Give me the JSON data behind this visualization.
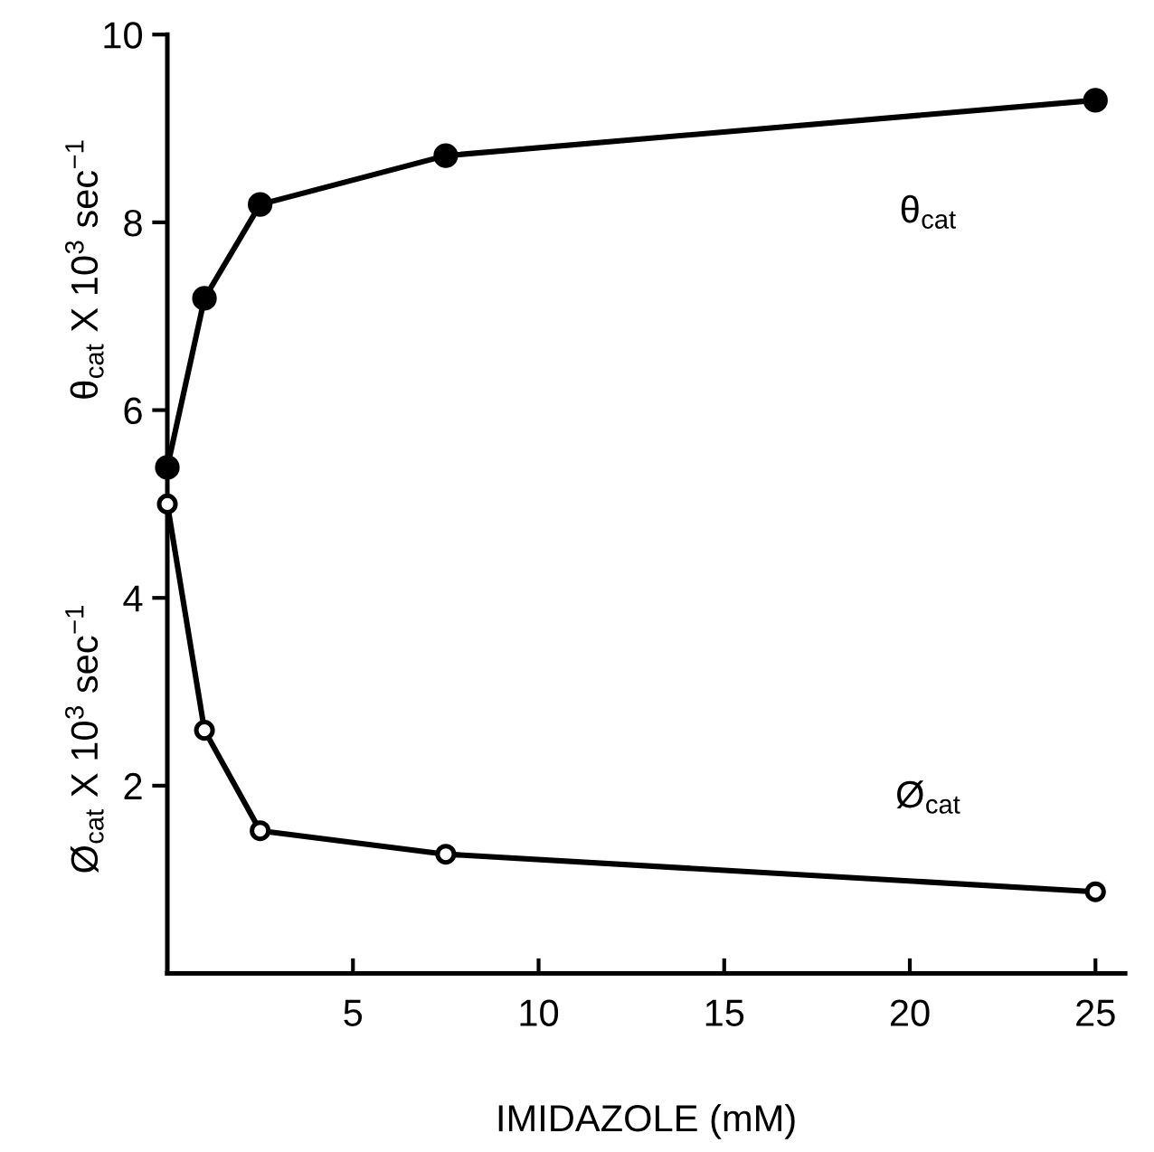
{
  "chart_data": {
    "type": "line",
    "xlabel": "IMIDAZOLE (mM)",
    "ylabel": [
      "θ$_{cat}$ X 10$^{3}$ sec$^{−1}$",
      "Ø$_{cat}$ X 10$^{3}$ sec$^{−1}$"
    ],
    "x": [
      0,
      1,
      2.5,
      7.5,
      25
    ],
    "series": [
      {
        "name": "θ$_{cat}$",
        "color": "#000000",
        "values": [
          5.39,
          7.19,
          8.19,
          8.71,
          9.3
        ]
      },
      {
        "name": "Ø$_{cat}$",
        "color": "#000000",
        "values": [
          5.0,
          2.59,
          1.52,
          1.27,
          0.87
        ]
      }
    ],
    "xlim": [
      0,
      25.8
    ],
    "ylim": [
      0,
      10
    ],
    "xticks": [
      5,
      10,
      15,
      20,
      25
    ],
    "yticks": [
      2,
      4,
      6,
      8,
      10
    ],
    "marker": "circle",
    "line_style": "solid",
    "grid": false,
    "legend": false
  }
}
